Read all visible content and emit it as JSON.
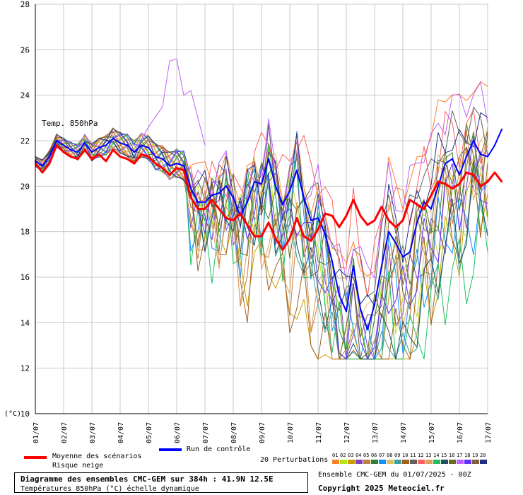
{
  "chart_data": {
    "type": "line",
    "title": "Diagramme des ensembles CMC-GEM sur 384h : 41.9N 12.5E",
    "subtitle": "Températures 850hPa (°C) échelle dynamique",
    "series_label": "Temp. 850hPa",
    "y_unit_label": "(°C)",
    "ylim": [
      10,
      28
    ],
    "yticks": [
      10,
      12,
      14,
      16,
      18,
      20,
      22,
      24,
      26,
      28
    ],
    "x_labels": [
      "01/07",
      "02/07",
      "03/07",
      "04/07",
      "05/07",
      "06/07",
      "07/07",
      "08/07",
      "09/07",
      "10/07",
      "11/07",
      "12/07",
      "13/07",
      "14/07",
      "15/07",
      "16/07",
      "17/07"
    ],
    "grid": true,
    "steps_per_day": 4,
    "mean": {
      "name": "Moyenne des scénarios",
      "color": "#ff0000",
      "values": [
        21.0,
        20.6,
        21.0,
        21.8,
        21.5,
        21.3,
        21.2,
        21.6,
        21.2,
        21.4,
        21.1,
        21.6,
        21.3,
        21.2,
        21.0,
        21.4,
        21.3,
        21.0,
        20.8,
        20.5,
        20.8,
        20.7,
        19.5,
        19.0,
        19.0,
        19.4,
        19.0,
        18.6,
        18.5,
        18.8,
        18.3,
        17.8,
        17.8,
        18.4,
        17.7,
        17.2,
        17.7,
        18.6,
        17.8,
        17.6,
        18.1,
        18.8,
        18.7,
        18.2,
        18.7,
        19.4,
        18.7,
        18.3,
        18.5,
        19.1,
        18.5,
        18.2,
        18.5,
        19.4,
        19.2,
        19.0,
        19.6,
        20.2,
        20.1,
        19.9,
        20.1,
        20.6,
        20.5,
        20.0,
        20.2,
        20.6,
        20.2
      ]
    },
    "control": {
      "name": "Run de contrôle",
      "color": "#0000ff",
      "values": [
        21.1,
        20.9,
        21.3,
        22.0,
        21.8,
        21.6,
        21.5,
        21.9,
        21.5,
        21.7,
        21.8,
        22.1,
        21.9,
        21.8,
        21.5,
        21.8,
        21.7,
        21.3,
        21.2,
        20.9,
        21.0,
        20.9,
        19.9,
        19.3,
        19.3,
        19.6,
        19.7,
        20.0,
        19.5,
        18.7,
        19.3,
        20.2,
        20.1,
        21.2,
        20.0,
        19.2,
        19.8,
        20.7,
        19.5,
        18.5,
        18.6,
        17.9,
        16.7,
        15.2,
        14.5,
        16.5,
        14.6,
        13.7,
        14.8,
        16.5,
        18.0,
        17.5,
        16.9,
        17.1,
        18.4,
        19.3,
        19.0,
        20.0,
        21.0,
        21.2,
        20.5,
        21.3,
        22.0,
        21.4,
        21.3,
        21.8,
        22.5
      ]
    },
    "snow_risk_label": "Risque neige",
    "perturbations_label": "20 Perturbations",
    "perturbation_numbers": [
      "01",
      "02",
      "03",
      "04",
      "05",
      "06",
      "07",
      "08",
      "09",
      "10",
      "11",
      "12",
      "13",
      "14",
      "15",
      "16",
      "17",
      "18",
      "19",
      "20"
    ],
    "perturbation_colors": [
      "#ff7f27",
      "#b5e61d",
      "#c8a000",
      "#8040c0",
      "#c08040",
      "#308030",
      "#1090ff",
      "#e0c060",
      "#40a0a0",
      "#a06020",
      "#606060",
      "#ff6060",
      "#e0a060",
      "#20c060",
      "#205060",
      "#6a6a20",
      "#c060ff",
      "#6030ff",
      "#806040",
      "#203080"
    ],
    "perturbation_params": [
      {
        "drift": 3.0,
        "amp": 0.7,
        "phase": 0.3
      },
      {
        "drift": -2.5,
        "amp": 1.6,
        "phase": 1.1
      },
      {
        "drift": -6.5,
        "amp": 1.5,
        "phase": 2.0
      },
      {
        "drift": -2.0,
        "amp": 1.8,
        "phase": 0.7
      },
      {
        "drift": -3.5,
        "amp": 2.0,
        "phase": 2.6
      },
      {
        "drift": -1.0,
        "amp": 1.2,
        "phase": 1.7
      },
      {
        "drift": -2.8,
        "amp": 2.1,
        "phase": 0.1
      },
      {
        "drift": 0.5,
        "amp": 1.0,
        "phase": 3.0
      },
      {
        "drift": -4.5,
        "amp": 1.4,
        "phase": 1.4
      },
      {
        "drift": -5.5,
        "amp": 2.3,
        "phase": 2.2
      },
      {
        "drift": 1.5,
        "amp": 0.9,
        "phase": 0.9
      },
      {
        "drift": 2.2,
        "amp": 1.0,
        "phase": 1.9
      },
      {
        "drift": -3.0,
        "amp": 1.9,
        "phase": 2.8
      },
      {
        "drift": -5.0,
        "amp": 2.4,
        "phase": 0.5
      },
      {
        "drift": -4.0,
        "amp": 1.6,
        "phase": 1.3
      },
      {
        "drift": -1.5,
        "amp": 1.7,
        "phase": 2.4
      },
      {
        "drift": 2.6,
        "amp": 1.1,
        "phase": 0.6
      },
      {
        "drift": -2.2,
        "amp": 1.5,
        "phase": 1.6
      },
      {
        "drift": -0.5,
        "amp": 1.3,
        "phase": 2.9
      },
      {
        "drift": 1.0,
        "amp": 1.2,
        "phase": 0.2
      }
    ],
    "peak_series": {
      "index": 16,
      "values": [
        [
          14,
          21.5
        ],
        [
          16,
          22.6
        ],
        [
          18,
          23.5
        ],
        [
          19,
          25.5
        ],
        [
          20,
          25.6
        ],
        [
          21,
          24.0
        ],
        [
          22,
          24.2
        ],
        [
          24,
          21.8
        ]
      ]
    }
  },
  "footer": {
    "title": "Diagramme des ensembles CMC-GEM sur 384h : 41.9N 12.5E",
    "subtitle": "Températures 850hPa (°C) échelle dynamique",
    "run": "Ensemble CMC-GEM du 01/07/2025 - 00Z",
    "copyright": "Copyright 2025 Meteociel.fr"
  }
}
